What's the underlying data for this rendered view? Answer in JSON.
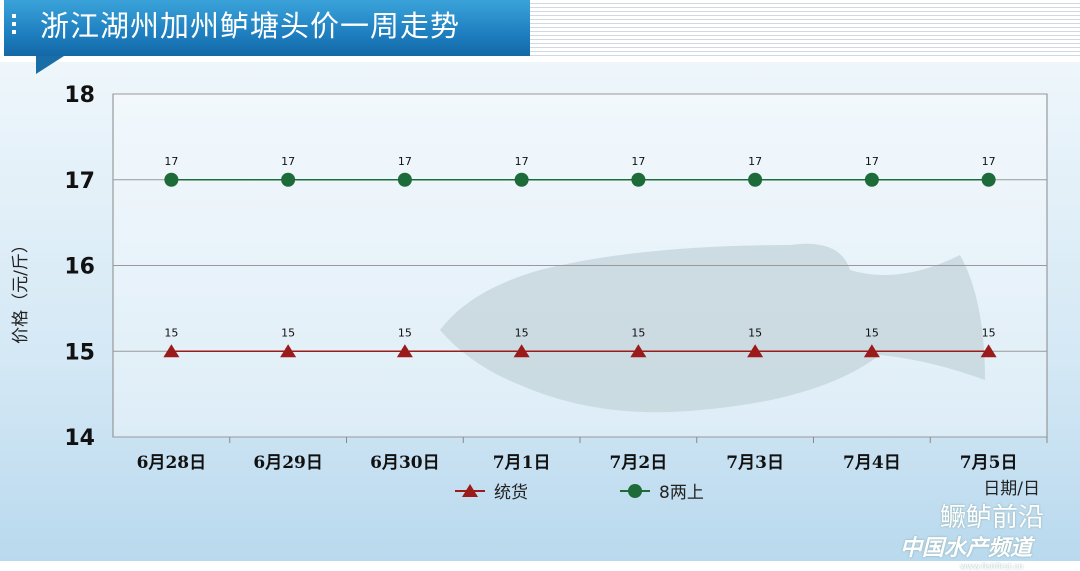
{
  "title": "浙江湖州加州鲈塘头价一周走势",
  "watermark": {
    "line1": "鳜鲈前沿",
    "line2": "中国水产频道",
    "url": "www.fishfirst.cn"
  },
  "chart_data": {
    "type": "line",
    "title": "浙江湖州加州鲈塘头价一周走势",
    "xlabel": "日期/日",
    "ylabel": "价格（元/斤）",
    "ylim": [
      14,
      18
    ],
    "yticks": [
      "14",
      "15",
      "16",
      "17",
      "18"
    ],
    "categories": [
      "6月28日",
      "6月29日",
      "6月30日",
      "7月1日",
      "7月2日",
      "7月3日",
      "7月4日",
      "7月5日"
    ],
    "grid": true,
    "legend": "bottom",
    "series": [
      {
        "name": "统货",
        "marker": "triangle",
        "color": "#9b1b1b",
        "values": [
          15,
          15,
          15,
          15,
          15,
          15,
          15,
          15
        ]
      },
      {
        "name": "8两上",
        "marker": "circle",
        "color": "#1e6b3a",
        "values": [
          17,
          17,
          17,
          17,
          17,
          17,
          17,
          17
        ]
      }
    ]
  }
}
